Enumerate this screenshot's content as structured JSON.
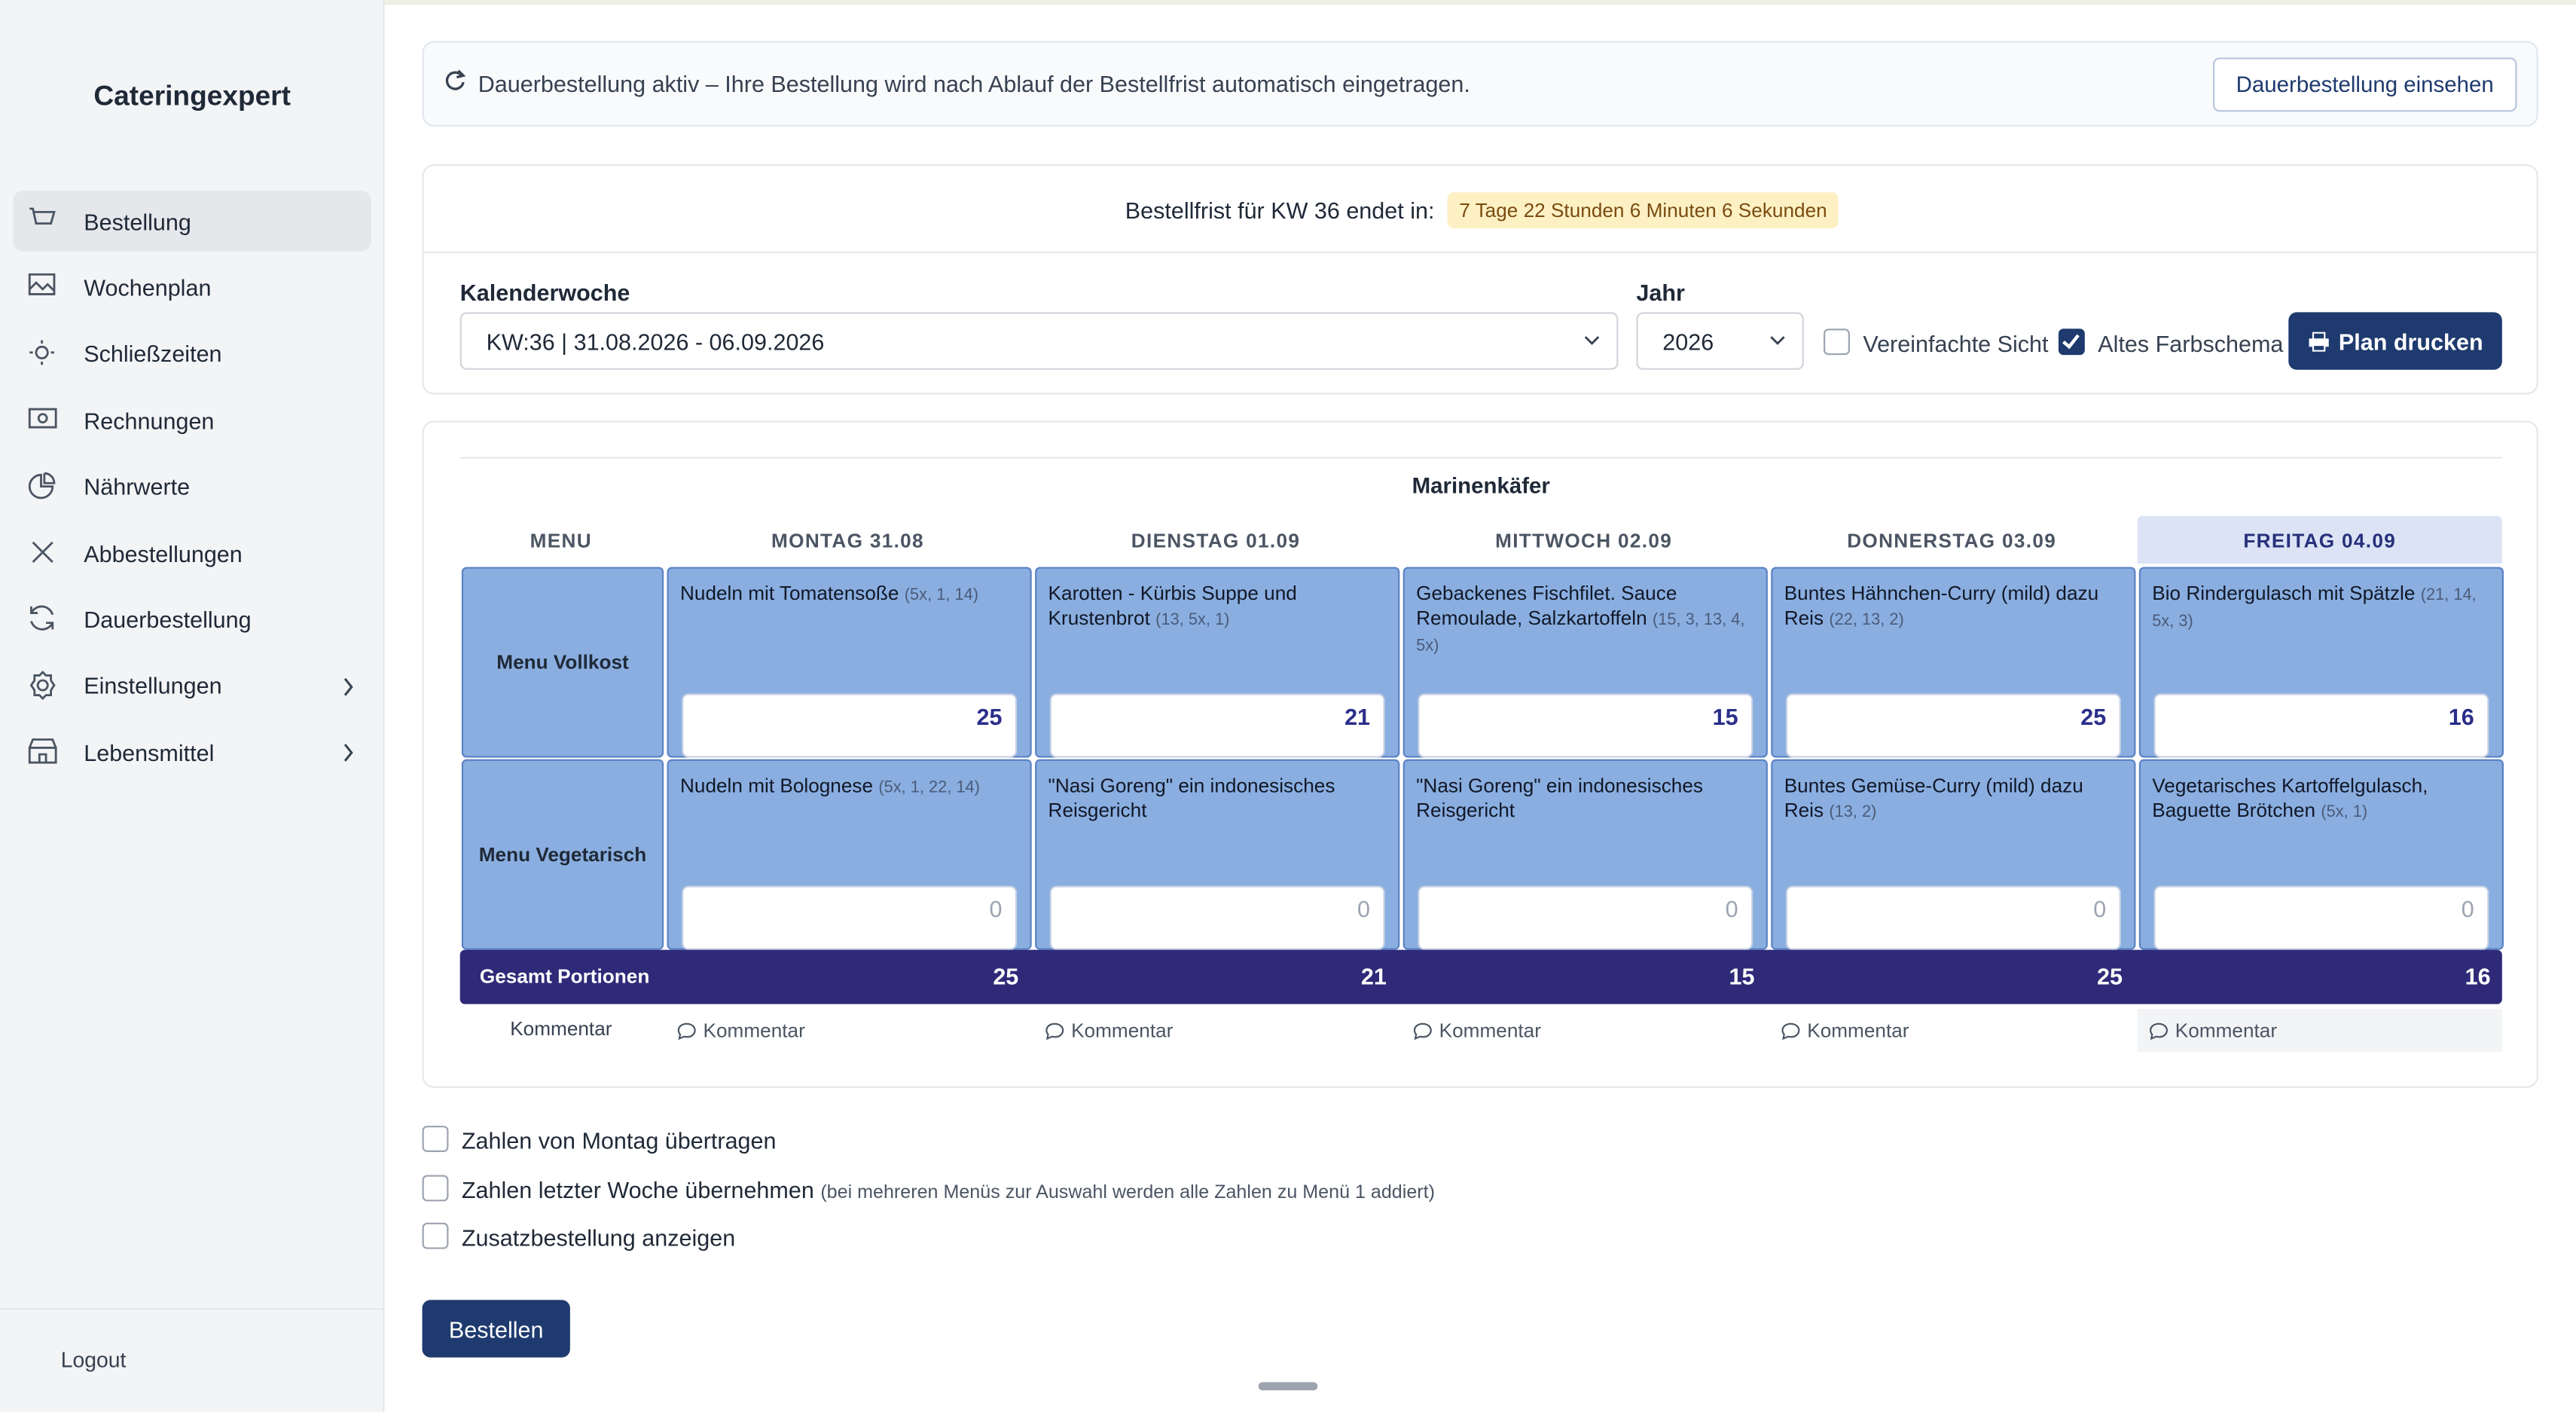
{
  "sidebar": {
    "brand": "Cateringexpert",
    "nav": [
      {
        "label": "Bestellung",
        "active": true
      },
      {
        "label": "Wochenplan"
      },
      {
        "label": "Schließzeiten"
      },
      {
        "label": "Rechnungen"
      },
      {
        "label": "Nährwerte"
      },
      {
        "label": "Abbestellungen"
      },
      {
        "label": "Dauerbestellung"
      },
      {
        "label": "Einstellungen",
        "submenu": true
      },
      {
        "label": "Lebensmittel",
        "submenu": true
      }
    ],
    "logout": "Logout"
  },
  "banner": {
    "text": "Dauerbestellung aktiv – Ihre Bestellung wird nach Ablauf der Bestellfrist automatisch eingetragen.",
    "button": "Dauerbestellung einsehen"
  },
  "deadline": {
    "label": "Bestellfrist für KW 36 endet in:",
    "countdown": "7 Tage 22 Stunden 6 Minuten 6 Sekunden"
  },
  "filters": {
    "week_label": "Kalenderwoche",
    "week": "KW:36 | 31.08.2026 - 06.09.2026",
    "year_label": "Jahr",
    "year": "2026",
    "simple_view": {
      "label": "Vereinfachte Sicht",
      "checked": false
    },
    "old_colors": {
      "label": "Altes Farbschema",
      "checked": true
    },
    "print": "Plan drucken"
  },
  "table": {
    "group": "Marinenkäfer",
    "menu_header": "MENU",
    "highlighted_day": 4,
    "days": [
      "MONTAG 31.08",
      "DIENSTAG 01.09",
      "MITTWOCH 02.09",
      "DONNERSTAG 03.09",
      "FREITAG 04.09"
    ],
    "rows": [
      {
        "name": "Menu Vollkost",
        "meals": [
          {
            "text": "Nudeln mit Tomatensoße",
            "codes": "(5x, 1, 14)",
            "qty": 25
          },
          {
            "text": "Karotten - Kürbis Suppe und Krustenbrot",
            "codes": "(13, 5x, 1)",
            "qty": 21
          },
          {
            "text": "Gebackenes Fischfilet. Sauce Remoulade, Salzkartoffeln",
            "codes": "(15, 3, 13, 4, 5x)",
            "qty": 15
          },
          {
            "text": "Buntes Hähnchen-Curry (mild) dazu Reis",
            "codes": "(22, 13, 2)",
            "qty": 25
          },
          {
            "text": "Bio Rindergulasch mit Spätzle",
            "codes": "(21, 14, 5x, 3)",
            "qty": 16
          }
        ]
      },
      {
        "name": "Menu Vegetarisch",
        "meals": [
          {
            "text": "Nudeln mit Bolognese",
            "codes": "(5x, 1, 22, 14)",
            "qty": 0
          },
          {
            "text": "\"Nasi Goreng\" ein indonesisches Reisgericht",
            "qty": 0
          },
          {
            "text": "\"Nasi Goreng\" ein indonesisches Reisgericht",
            "qty": 0
          },
          {
            "text": "Buntes Gemüse-Curry (mild) dazu Reis",
            "codes": "(13, 2)",
            "qty": 0
          },
          {
            "text": "Vegetarisches Kartoffelgulasch, Baguette Brötchen",
            "codes": "(5x, 1)",
            "qty": 0
          }
        ]
      }
    ],
    "total_label": "Gesamt Portionen",
    "totals": [
      25,
      21,
      15,
      25,
      16
    ],
    "comment_label": "Kommentar",
    "comment_button": "Kommentar"
  },
  "options": [
    {
      "label": "Zahlen von Montag übertragen",
      "checked": false
    },
    {
      "label": "Zahlen letzter Woche übernehmen",
      "note": "(bei mehreren Menüs zur Auswahl werden alle Zahlen zu Menü 1 addiert)",
      "checked": false
    },
    {
      "label": "Zusatzbestellung anzeigen",
      "checked": false
    }
  ],
  "submit": "Bestellen"
}
